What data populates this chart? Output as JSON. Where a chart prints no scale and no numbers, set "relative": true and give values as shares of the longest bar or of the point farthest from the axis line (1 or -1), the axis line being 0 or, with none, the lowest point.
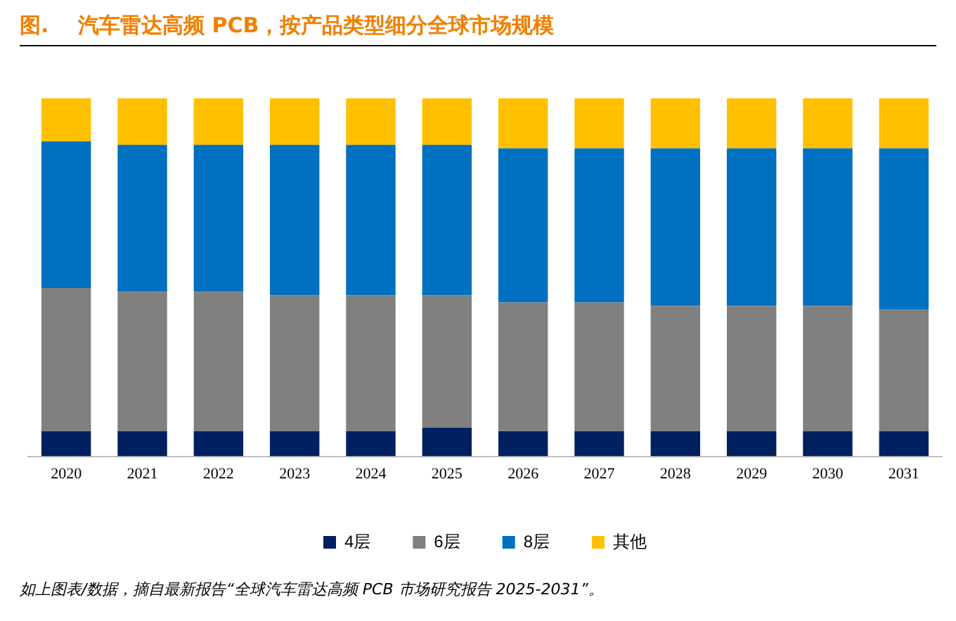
{
  "chart_data": {
    "type": "bar",
    "title": "图.    汽车雷达高频 PCB，按产品类型细分全球市场规模",
    "categories": [
      "2020",
      "2021",
      "2022",
      "2023",
      "2024",
      "2025",
      "2026",
      "2027",
      "2028",
      "2029",
      "2030",
      "2031"
    ],
    "stacked": true,
    "relative": true,
    "legend": "bottom",
    "grid": false,
    "series": [
      {
        "name": "4层",
        "color": "#002060",
        "values": [
          0.07,
          0.07,
          0.07,
          0.07,
          0.07,
          0.08,
          0.07,
          0.07,
          0.07,
          0.07,
          0.07,
          0.07
        ]
      },
      {
        "name": "6层",
        "color": "#808080",
        "values": [
          0.4,
          0.39,
          0.39,
          0.38,
          0.38,
          0.37,
          0.36,
          0.36,
          0.35,
          0.35,
          0.35,
          0.34
        ]
      },
      {
        "name": "8层",
        "color": "#0070c0",
        "values": [
          0.41,
          0.41,
          0.41,
          0.42,
          0.42,
          0.42,
          0.43,
          0.43,
          0.44,
          0.44,
          0.44,
          0.45
        ]
      },
      {
        "name": "其他",
        "color": "#ffc000",
        "values": [
          0.12,
          0.13,
          0.13,
          0.13,
          0.13,
          0.13,
          0.14,
          0.14,
          0.14,
          0.14,
          0.14,
          0.14
        ]
      }
    ],
    "annotations": [
      "如上图表/数据，摘自最新报告“全球汽车雷达高频 PCB 市场研究报告 2025-2031”。"
    ]
  }
}
